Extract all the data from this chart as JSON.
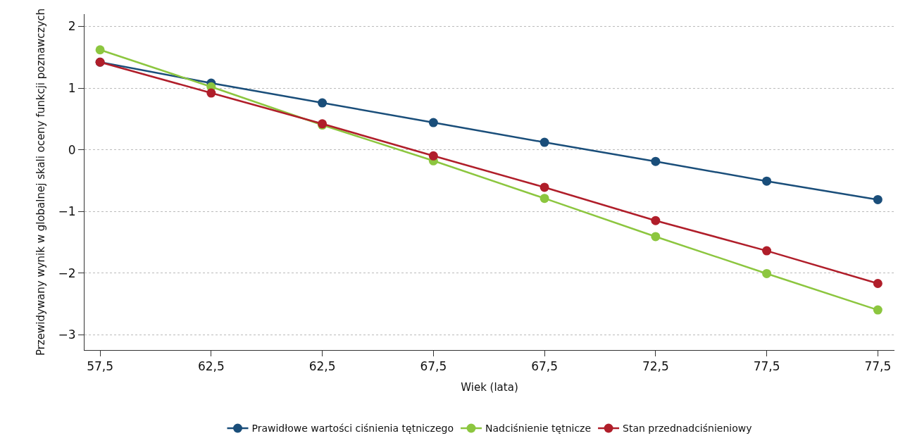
{
  "chart_data": {
    "type": "line",
    "xlabel": "Wiek (lata)",
    "ylabel": "Przewidywany wynik w globalnej skali oceny funkcji poznawczych",
    "categories": [
      "57,5",
      "62,5",
      "62,5",
      "67,5",
      "67,5",
      "72,5",
      "77,5",
      "77,5"
    ],
    "series": [
      {
        "name": "Prawidłowe wartości ciśnienia tętniczego",
        "color": "#1a4e7a",
        "values": [
          1.42,
          1.08,
          0.76,
          0.44,
          0.12,
          -0.19,
          -0.51,
          -0.81
        ]
      },
      {
        "name": "Nadciśnienie tętnicze",
        "color": "#8cc63f",
        "values": [
          1.62,
          1.02,
          0.4,
          -0.18,
          -0.79,
          -1.41,
          -2.01,
          -2.6
        ]
      },
      {
        "name": "Stan przednadciśnieniowy",
        "color": "#b01e2a",
        "values": [
          1.42,
          0.92,
          0.42,
          -0.1,
          -0.61,
          -1.15,
          -1.64,
          -2.17
        ]
      }
    ],
    "ylim": [
      -3.25,
      2.2
    ],
    "yticks": [
      2,
      1,
      0,
      {
        "value": -1,
        "label": "−1"
      },
      {
        "value": -2,
        "label": "−2"
      },
      {
        "value": -3,
        "label": "−3"
      }
    ],
    "grid": "y",
    "legend": "bottom",
    "marker": "circle",
    "line_style": "solid"
  }
}
